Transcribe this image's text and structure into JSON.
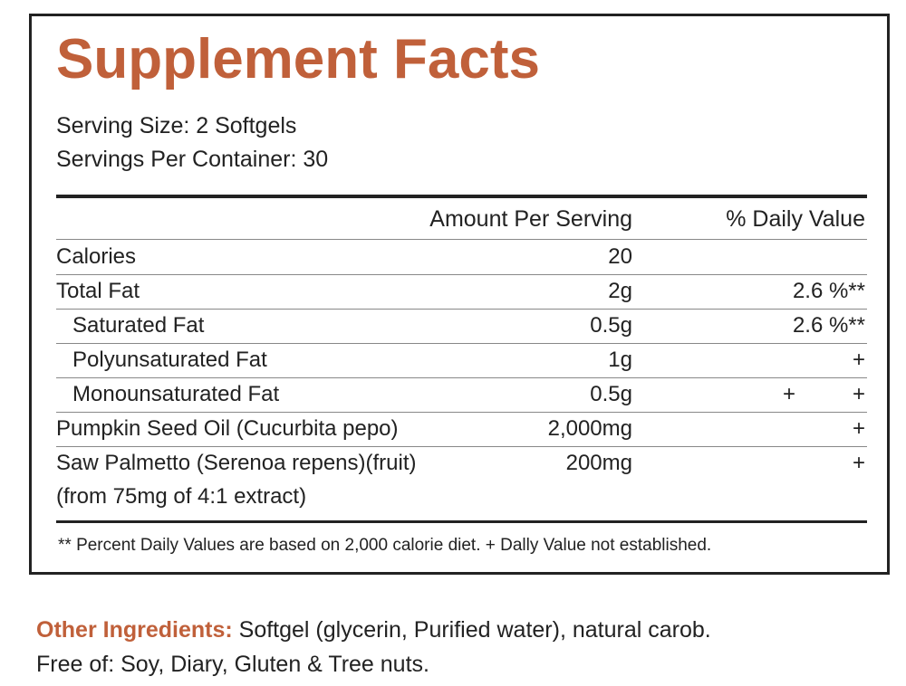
{
  "header": {
    "title": "Supplement Facts",
    "serving_size": "Serving Size: 2 Softgels",
    "servings_per_container": "Servings Per Container: 30"
  },
  "table": {
    "columns": {
      "amount": "Amount Per Serving",
      "dv": "% Daily Value"
    },
    "rows": [
      {
        "name": "Calories",
        "amount": "20",
        "dv": []
      },
      {
        "name": "Total Fat",
        "amount": "2g",
        "dv": [
          "2.6 %**"
        ]
      },
      {
        "name": "Saturated Fat",
        "amount": "0.5g",
        "dv": [
          "2.6 %**"
        ],
        "indent": true
      },
      {
        "name": "Polyunsaturated Fat",
        "amount": "1g",
        "dv": [
          "+"
        ],
        "indent": true
      },
      {
        "name": "Monounsaturated Fat",
        "amount": "0.5g",
        "dv": [
          "+",
          "+"
        ],
        "indent": true
      },
      {
        "name": "Pumpkin Seed Oil (Cucurbita pepo)",
        "amount": "2,000mg",
        "dv": [
          "+"
        ]
      },
      {
        "name": "Saw Palmetto (Serenoa repens)(fruit)",
        "name_line2": "(from 75mg of 4:1 extract)",
        "amount": "200mg",
        "dv": [
          "+"
        ]
      }
    ],
    "footnote": "** Percent Daily Values are based on 2,000 calorie diet. + Dally Value not established."
  },
  "other_ingredients": {
    "label": "Other Ingredients:",
    "text": "Softgel (glycerin, Purified water), natural carob.",
    "free_of": "Free of: Soy, Diary, Gluten & Tree nuts."
  }
}
